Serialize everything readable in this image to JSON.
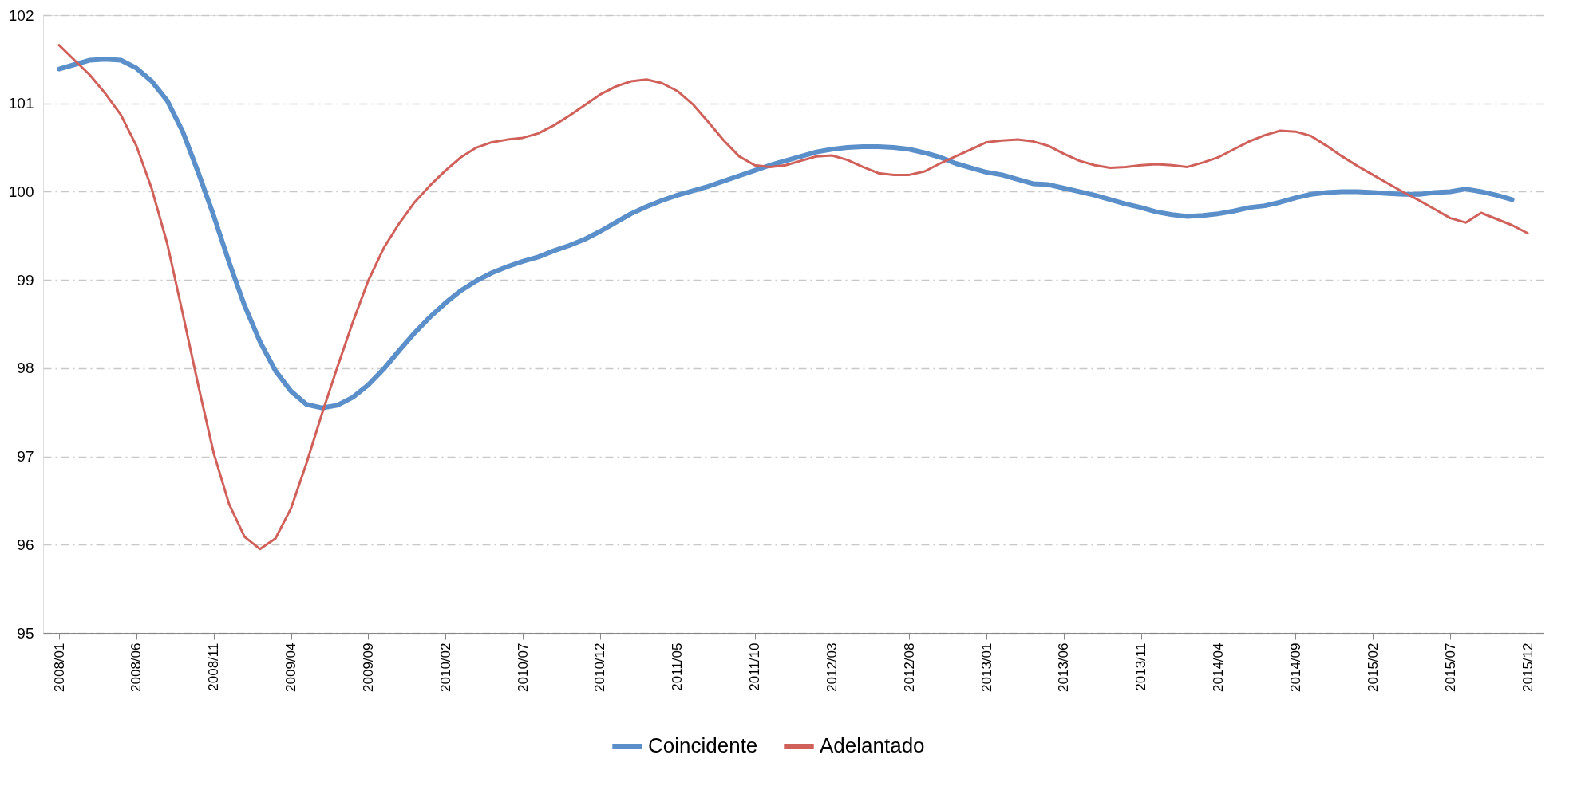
{
  "chart_data": {
    "type": "line",
    "categories": [
      "2008/01",
      null,
      null,
      null,
      null,
      "2008/06",
      null,
      null,
      null,
      null,
      "2008/11",
      null,
      null,
      null,
      null,
      "2009/04",
      null,
      null,
      null,
      null,
      "2009/09",
      null,
      null,
      null,
      null,
      "2010/02",
      null,
      null,
      null,
      null,
      "2010/07",
      null,
      null,
      null,
      null,
      "2010/12",
      null,
      null,
      null,
      null,
      "2011/05",
      null,
      null,
      null,
      null,
      "2011/10",
      null,
      null,
      null,
      null,
      "2012/03",
      null,
      null,
      null,
      null,
      "2012/08",
      null,
      null,
      null,
      null,
      "2013/01",
      null,
      null,
      null,
      null,
      "2013/06",
      null,
      null,
      null,
      null,
      "2013/11",
      null,
      null,
      null,
      null,
      "2014/04",
      null,
      null,
      null,
      null,
      "2014/09",
      null,
      null,
      null,
      null,
      "2015/02",
      null,
      null,
      null,
      null,
      "2015/07",
      null,
      null,
      null,
      null,
      "2015/12"
    ],
    "series": [
      {
        "name": "Coincidente",
        "color": "#5b8fc9",
        "values": [
          101.39,
          101.44,
          101.49,
          101.5,
          101.49,
          101.4,
          101.25,
          101.03,
          100.68,
          100.22,
          99.73,
          99.2,
          98.71,
          98.3,
          97.97,
          97.74,
          97.59,
          97.55,
          97.58,
          97.67,
          97.81,
          97.99,
          98.2,
          98.4,
          98.58,
          98.74,
          98.88,
          98.99,
          99.08,
          99.15,
          99.21,
          99.26,
          99.33,
          99.39,
          99.46,
          99.55,
          99.65,
          99.75,
          99.83,
          99.9,
          99.96,
          100.01,
          100.06,
          100.12,
          100.18,
          100.24,
          100.3,
          100.35,
          100.4,
          100.45,
          100.48,
          100.5,
          100.51,
          100.51,
          100.5,
          100.48,
          100.44,
          100.39,
          100.32,
          100.27,
          100.22,
          100.19,
          100.14,
          100.09,
          100.08,
          100.04,
          100.0,
          99.96,
          99.91,
          99.86,
          99.82,
          99.77,
          99.74,
          99.72,
          99.73,
          99.75,
          99.78,
          99.82,
          99.84,
          99.88,
          99.93,
          99.97,
          99.99,
          100.0,
          100.0,
          99.99,
          99.98,
          99.97,
          99.97,
          99.99,
          100.0,
          100.03,
          100.0,
          99.96,
          99.91,
          null
        ]
      },
      {
        "name": "Adelantado",
        "color": "#d0605a",
        "values": [
          101.66,
          101.49,
          101.32,
          101.11,
          100.87,
          100.52,
          100.03,
          99.41,
          98.62,
          97.81,
          97.04,
          96.46,
          96.09,
          95.95,
          96.07,
          96.41,
          96.92,
          97.48,
          98.01,
          98.52,
          98.99,
          99.36,
          99.64,
          99.88,
          100.07,
          100.24,
          100.39,
          100.5,
          100.56,
          100.59,
          100.61,
          100.66,
          100.75,
          100.86,
          100.98,
          101.1,
          101.19,
          101.25,
          101.27,
          101.23,
          101.14,
          100.99,
          100.79,
          100.58,
          100.4,
          100.3,
          100.28,
          100.3,
          100.35,
          100.4,
          100.41,
          100.36,
          100.28,
          100.21,
          100.19,
          100.19,
          100.23,
          100.32,
          100.4,
          100.48,
          100.56,
          100.58,
          100.59,
          100.57,
          100.52,
          100.43,
          100.35,
          100.3,
          100.27,
          100.28,
          100.3,
          100.31,
          100.3,
          100.28,
          100.33,
          100.39,
          100.48,
          100.57,
          100.64,
          100.69,
          100.68,
          100.63,
          100.52,
          100.4,
          100.29,
          100.19,
          100.09,
          99.99,
          99.9,
          99.8,
          99.7,
          99.65,
          99.76,
          99.69,
          99.62,
          99.53
        ]
      }
    ],
    "ylim": [
      95,
      102
    ],
    "yticks": [
      95,
      96,
      97,
      98,
      99,
      100,
      101,
      102
    ],
    "grid": "y",
    "legend": "bottom"
  }
}
